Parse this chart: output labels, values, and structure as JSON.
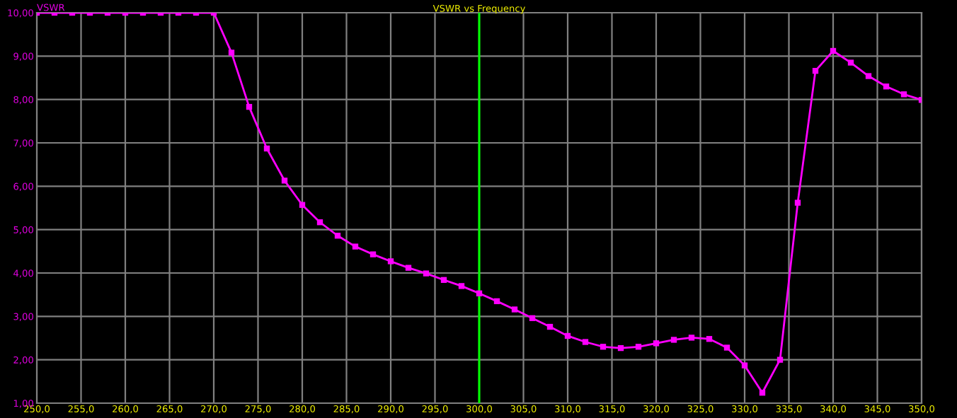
{
  "chart_data": {
    "type": "line",
    "title": "VSWR vs Frequency",
    "ylabel": "VSWR",
    "x": [
      250,
      252,
      254,
      256,
      258,
      260,
      262,
      264,
      266,
      268,
      270,
      272,
      274,
      276,
      278,
      280,
      282,
      284,
      286,
      288,
      290,
      292,
      294,
      296,
      298,
      300,
      302,
      304,
      306,
      308,
      310,
      312,
      314,
      316,
      318,
      320,
      322,
      324,
      326,
      328,
      330,
      332,
      334,
      336,
      338,
      340,
      342,
      344,
      346,
      348,
      350
    ],
    "series": [
      {
        "color": "#ff00ff",
        "values": [
          10,
          10,
          10,
          10,
          10,
          10,
          10,
          10,
          10,
          10,
          10,
          9.08,
          7.83,
          6.87,
          6.13,
          5.57,
          5.17,
          4.86,
          4.61,
          4.43,
          4.27,
          4.12,
          3.99,
          3.84,
          3.7,
          3.53,
          3.35,
          3.16,
          2.96,
          2.76,
          2.55,
          2.41,
          2.3,
          2.27,
          2.3,
          2.38,
          2.46,
          2.51,
          2.48,
          2.28,
          1.87,
          1.24,
          2.0,
          5.62,
          8.66,
          9.12,
          8.85,
          8.54,
          8.3,
          8.12,
          7.99
        ]
      }
    ],
    "xlim": [
      250,
      350
    ],
    "ylim": [
      1,
      10
    ],
    "xticks": [
      {
        "value": 250,
        "label": "250,0"
      },
      {
        "value": 255,
        "label": "255,0"
      },
      {
        "value": 260,
        "label": "260,0"
      },
      {
        "value": 265,
        "label": "265,0"
      },
      {
        "value": 270,
        "label": "270,0"
      },
      {
        "value": 275,
        "label": "275,0"
      },
      {
        "value": 280,
        "label": "280,0"
      },
      {
        "value": 285,
        "label": "285,0"
      },
      {
        "value": 290,
        "label": "290,0"
      },
      {
        "value": 295,
        "label": "295,0"
      },
      {
        "value": 300,
        "label": "300,0"
      },
      {
        "value": 305,
        "label": "305,0"
      },
      {
        "value": 310,
        "label": "310,0"
      },
      {
        "value": 315,
        "label": "315,0"
      },
      {
        "value": 320,
        "label": "320,0"
      },
      {
        "value": 325,
        "label": "325,0"
      },
      {
        "value": 330,
        "label": "330,0"
      },
      {
        "value": 335,
        "label": "335,0"
      },
      {
        "value": 340,
        "label": "340,0"
      },
      {
        "value": 345,
        "label": "345,0"
      },
      {
        "value": 350,
        "label": "350,0"
      }
    ],
    "yticks": [
      {
        "value": 1,
        "label": "1,00"
      },
      {
        "value": 2,
        "label": "2,00"
      },
      {
        "value": 3,
        "label": "3,00"
      },
      {
        "value": 4,
        "label": "4,00"
      },
      {
        "value": 5,
        "label": "5,00"
      },
      {
        "value": 6,
        "label": "6,00"
      },
      {
        "value": 7,
        "label": "7,00"
      },
      {
        "value": 8,
        "label": "8,00"
      },
      {
        "value": 9,
        "label": "9,00"
      },
      {
        "value": 10,
        "label": "10,00"
      }
    ],
    "ref_lines": [
      {
        "axis": "x",
        "value": 300,
        "color": "#00ff00"
      }
    ],
    "grid": true,
    "legend": false,
    "marker": "square",
    "line_style": "solid"
  }
}
